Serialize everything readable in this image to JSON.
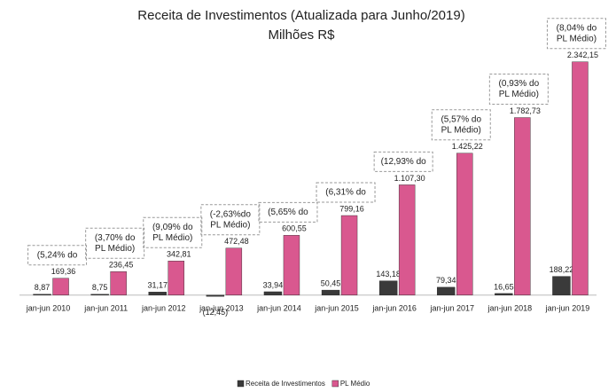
{
  "chart_data": {
    "type": "bar",
    "title": "Receita de Investimentos (Atualizada para Junho/2019)",
    "subtitle": "Milhões R$",
    "categories": [
      "jan-jun 2010",
      "jan-jun 2011",
      "jan-jun 2012",
      "jan-jun 2013",
      "jan-jun 2014",
      "jan-jun 2015",
      "jan-jun 2016",
      "jan-jun 2017",
      "jan-jun 2018",
      "jan-jun 2019"
    ],
    "series": [
      {
        "name": "Receita de Investimentos",
        "color": "#3a3a3a",
        "values": [
          8.87,
          8.75,
          31.17,
          -12.45,
          33.94,
          50.45,
          143.18,
          79.34,
          16.65,
          188.22
        ],
        "value_labels": [
          "8,87",
          "8,75",
          "31,17",
          "(12,45)",
          "33,94",
          "50,45",
          "143,18",
          "79,34",
          "16,65",
          "188,22"
        ]
      },
      {
        "name": "PL Médio",
        "color": "#d9588f",
        "values": [
          169.36,
          236.45,
          342.81,
          472.48,
          600.55,
          799.16,
          1107.3,
          1425.22,
          1782.73,
          2342.15
        ],
        "value_labels": [
          "169,36",
          "236,45",
          "342,81",
          "472,48",
          "600,55",
          "799,16",
          "1.107,30",
          "1.425,22",
          "1.782,73",
          "2.342,15"
        ]
      }
    ],
    "annotations": [
      [
        "(5,24% do"
      ],
      [
        "(3,70% do",
        "PL Médio)"
      ],
      [
        "(9,09% do",
        "PL Médio)"
      ],
      [
        "(-2,63%do",
        "PL Médio)"
      ],
      [
        "(5,65% do"
      ],
      [
        "(6,31% do"
      ],
      [
        "(12,93% do"
      ],
      [
        "(5,57% do",
        "PL Médio)"
      ],
      [
        "(0,93% do",
        "PL Médio)"
      ],
      [
        "(8,04% do",
        "PL Médio)"
      ]
    ],
    "ylim": [
      -100,
      2500
    ]
  }
}
